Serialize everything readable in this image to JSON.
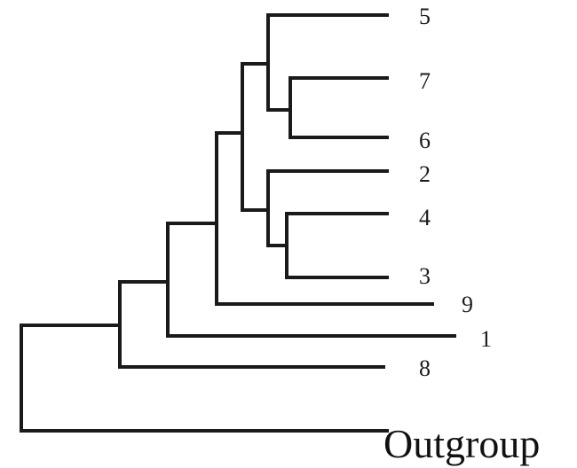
{
  "tree": {
    "leaves": [
      {
        "id": "leaf-5",
        "label": "5"
      },
      {
        "id": "leaf-7",
        "label": "7"
      },
      {
        "id": "leaf-6",
        "label": "6"
      },
      {
        "id": "leaf-2",
        "label": "2"
      },
      {
        "id": "leaf-4",
        "label": "4"
      },
      {
        "id": "leaf-3",
        "label": "3"
      },
      {
        "id": "leaf-9",
        "label": "9"
      },
      {
        "id": "leaf-1",
        "label": "1"
      },
      {
        "id": "leaf-8",
        "label": "8"
      },
      {
        "id": "leaf-outgroup",
        "label": "Outgroup"
      }
    ],
    "topology": "(Outgroup,(8,(1,(9,((5,(7,6)),(2,(4,3)))))))"
  }
}
